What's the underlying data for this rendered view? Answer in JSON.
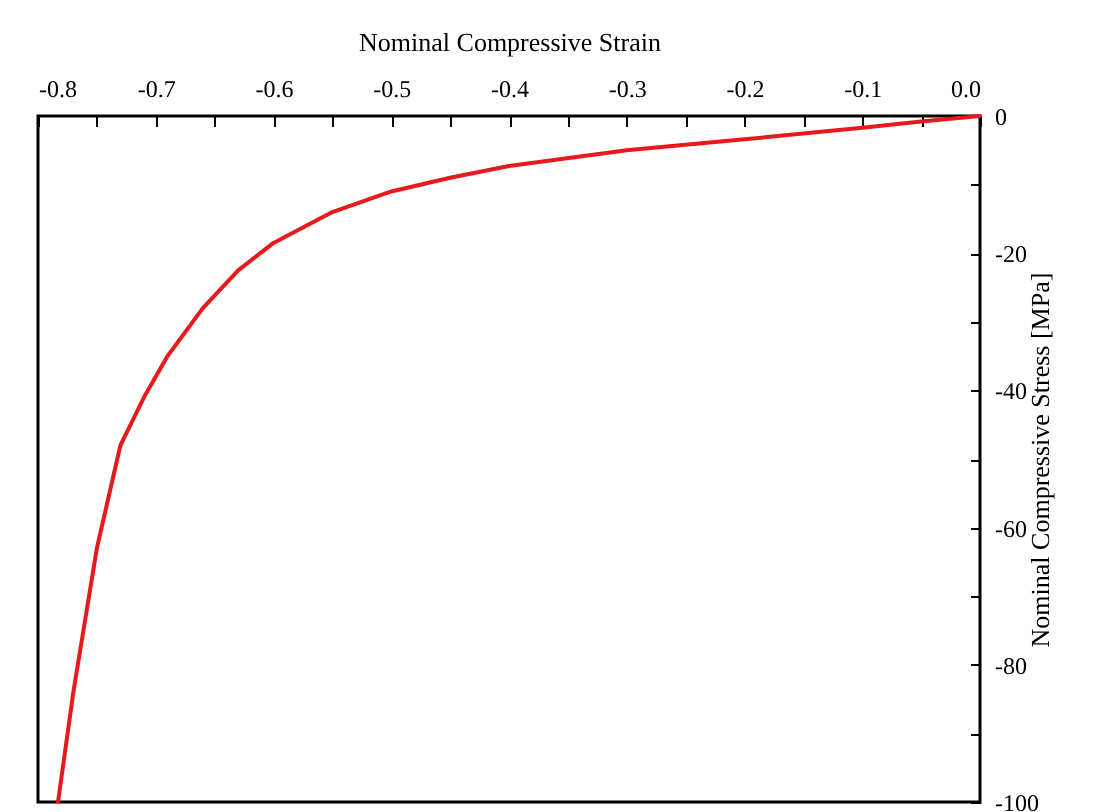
{
  "chart_data": {
    "type": "line",
    "xlabel": "Nominal Compressive Strain",
    "ylabel": "Nominal Compressive Stress [MPa]",
    "x": [
      0,
      -0.05,
      -0.1,
      -0.2,
      -0.3,
      -0.4,
      -0.45,
      -0.5,
      -0.55,
      -0.6,
      -0.63,
      -0.66,
      -0.69,
      -0.71,
      -0.73,
      -0.75,
      -0.77,
      -0.783
    ],
    "series": [
      {
        "color": "#e8191a",
        "values": [
          0,
          -0.8,
          -1.7,
          -3.4,
          -5,
          -7.3,
          -9,
          -11,
          -14,
          -18.5,
          -22.5,
          -28,
          -35,
          -41,
          -48,
          -63,
          -84,
          -100
        ]
      }
    ],
    "xlim": [
      -0.8,
      0
    ],
    "ylim": [
      -100,
      0
    ],
    "xticks": [
      -0.8,
      {
        "value": -0.75,
        "label": null
      },
      -0.7,
      {
        "value": -0.65,
        "label": null
      },
      -0.6,
      {
        "value": -0.55,
        "label": null
      },
      -0.5,
      {
        "value": -0.45,
        "label": null
      },
      -0.4,
      {
        "value": -0.35,
        "label": null
      },
      -0.3,
      {
        "value": -0.25,
        "label": null
      },
      -0.2,
      {
        "value": -0.15,
        "label": null
      },
      -0.1,
      {
        "value": -0.05,
        "label": null
      },
      {
        "value": 0,
        "label": "0.0"
      }
    ],
    "yticks": [
      0,
      {
        "value": -10,
        "label": null
      },
      -20,
      {
        "value": -30,
        "label": null
      },
      -40,
      {
        "value": -50,
        "label": null
      },
      -60,
      {
        "value": -70,
        "label": null
      },
      -80,
      {
        "value": -90,
        "label": null
      },
      -100
    ],
    "grid": false,
    "marker": "none",
    "line_style": "solid"
  }
}
